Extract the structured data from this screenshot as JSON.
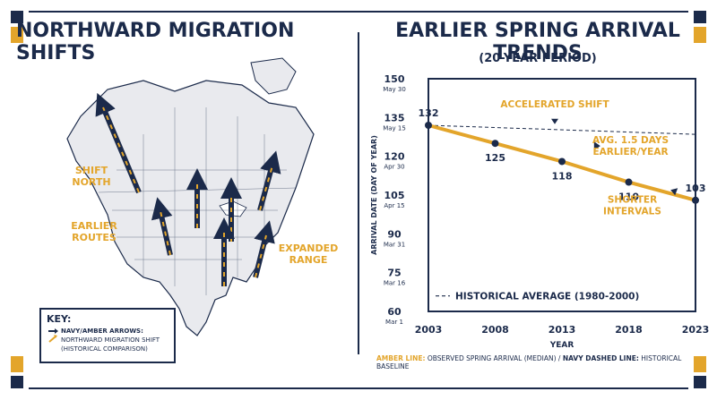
{
  "left_title": "NORTHWARD MIGRATION SHIFTS",
  "right_title": "EARLIER SPRING ARRIVAL TRENDS",
  "right_subtitle": "(20-YEAR PERIOD)",
  "map_labels": {
    "shift_north": [
      "SHIFT",
      "NORTH"
    ],
    "earlier_routes": [
      "EARLIER",
      "ROUTES"
    ],
    "expanded_range": [
      "EXPANDED",
      "RANGE"
    ]
  },
  "key": {
    "title": "KEY:",
    "line1": "NAVY/AMBER ARROWS:",
    "line2": "NORTHWARD MIGRATION SHIFT",
    "line3": "(HISTORICAL COMPARISON)"
  },
  "footer": {
    "amber_label": "AMBER LINE:",
    "amber_text": " OBSERVED SPRING ARRIVAL (MEDIAN) / ",
    "navy_label": "NAVY DASHED LINE:",
    "navy_text": " HISTORICAL BASELINE"
  },
  "colors": {
    "navy": "#1b2a4a",
    "amber": "#e3a52b",
    "land": "#e9eaee"
  },
  "chart_data": {
    "type": "line",
    "title": "EARLIER SPRING ARRIVAL TRENDS",
    "subtitle": "(20-YEAR PERIOD)",
    "xlabel": "YEAR",
    "ylabel": "ARRIVAL DATE (DAY OF YEAR)",
    "x": [
      2003,
      2008,
      2013,
      2018,
      2023
    ],
    "xlim": [
      2003,
      2023
    ],
    "ylim": [
      60,
      150
    ],
    "yticks": [
      {
        "value": 150,
        "date": "May 30"
      },
      {
        "value": 135,
        "date": "May 15"
      },
      {
        "value": 120,
        "date": "Apr 30"
      },
      {
        "value": 105,
        "date": "Apr 15"
      },
      {
        "value": 90,
        "date": "Mar 31"
      },
      {
        "value": 75,
        "date": "Mar 16"
      },
      {
        "value": 60,
        "date": "Mar 1"
      }
    ],
    "series": [
      {
        "values": [
          132,
          125,
          118,
          110,
          103
        ]
      }
    ],
    "baseline": {
      "name": "HISTORICAL AVERAGE (1980-2000)",
      "start": 132,
      "end": 128.5
    },
    "annotations": {
      "accelerated": "ACCELERATED SHIFT",
      "avg_line1": "AVG. 1.5 DAYS",
      "avg_line2": "EARLIER/YEAR",
      "shorter_line1": "SHORTER",
      "shorter_line2": "INTERVALS"
    },
    "grid": false
  }
}
